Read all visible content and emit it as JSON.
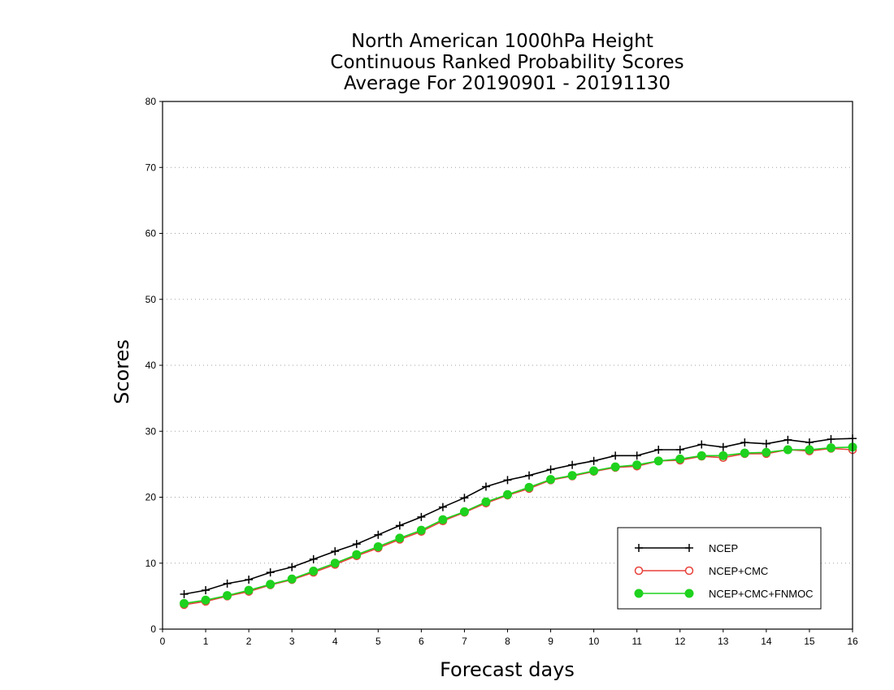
{
  "chart_data": {
    "type": "line",
    "title": [
      "North American 1000hPa Height",
      "Continuous Ranked Probability Scores",
      "Average For 20190901 - 20191130"
    ],
    "xlabel": "Forecast days",
    "ylabel": "Scores",
    "xlim": [
      0,
      16
    ],
    "ylim": [
      0,
      80
    ],
    "xticks": [
      "0",
      "1",
      "2",
      "3",
      "4",
      "5",
      "6",
      "7",
      "8",
      "9",
      "10",
      "11",
      "12",
      "13",
      "14",
      "15",
      "16"
    ],
    "yticks": [
      "0",
      "10",
      "20",
      "30",
      "40",
      "50",
      "60",
      "70",
      "80"
    ],
    "grid": "horizontal dotted",
    "legend_position": "bottom-right",
    "x": [
      0.5,
      1,
      1.5,
      2,
      2.5,
      3,
      3.5,
      4,
      4.5,
      5,
      5.5,
      6,
      6.5,
      7,
      7.5,
      8,
      8.5,
      9,
      9.5,
      10,
      10.5,
      11,
      11.5,
      12,
      12.5,
      13,
      13.5,
      14,
      14.5,
      15,
      15.5,
      16
    ],
    "series": [
      {
        "name": "NCEP",
        "color": "#000000",
        "marker": "plus",
        "values": [
          5.3,
          5.9,
          6.9,
          7.5,
          8.6,
          9.4,
          10.6,
          11.8,
          12.9,
          14.3,
          15.7,
          17.0,
          18.5,
          19.9,
          21.6,
          22.6,
          23.3,
          24.2,
          24.9,
          25.5,
          26.3,
          26.3,
          27.2,
          27.2,
          28.0,
          27.6,
          28.3,
          28.1,
          28.7,
          28.3,
          28.8,
          28.9
        ]
      },
      {
        "name": "NCEP+CMC",
        "color": "#e8403a",
        "marker": "open-circle",
        "values": [
          3.7,
          4.2,
          5.0,
          5.7,
          6.7,
          7.5,
          8.6,
          9.8,
          11.1,
          12.3,
          13.6,
          14.8,
          16.4,
          17.7,
          19.1,
          20.3,
          21.3,
          22.6,
          23.2,
          23.9,
          24.5,
          24.7,
          25.5,
          25.6,
          26.2,
          26.0,
          26.6,
          26.6,
          27.2,
          27.0,
          27.4,
          27.2
        ]
      },
      {
        "name": "NCEP+CMC+FNMOC",
        "color": "#1ed21e",
        "marker": "filled-circle",
        "values": [
          3.9,
          4.4,
          5.1,
          5.9,
          6.8,
          7.6,
          8.8,
          10.0,
          11.3,
          12.5,
          13.8,
          15.0,
          16.6,
          17.8,
          19.3,
          20.4,
          21.5,
          22.7,
          23.3,
          24.0,
          24.6,
          24.9,
          25.5,
          25.8,
          26.3,
          26.3,
          26.7,
          26.8,
          27.2,
          27.2,
          27.5,
          27.6
        ]
      }
    ]
  }
}
